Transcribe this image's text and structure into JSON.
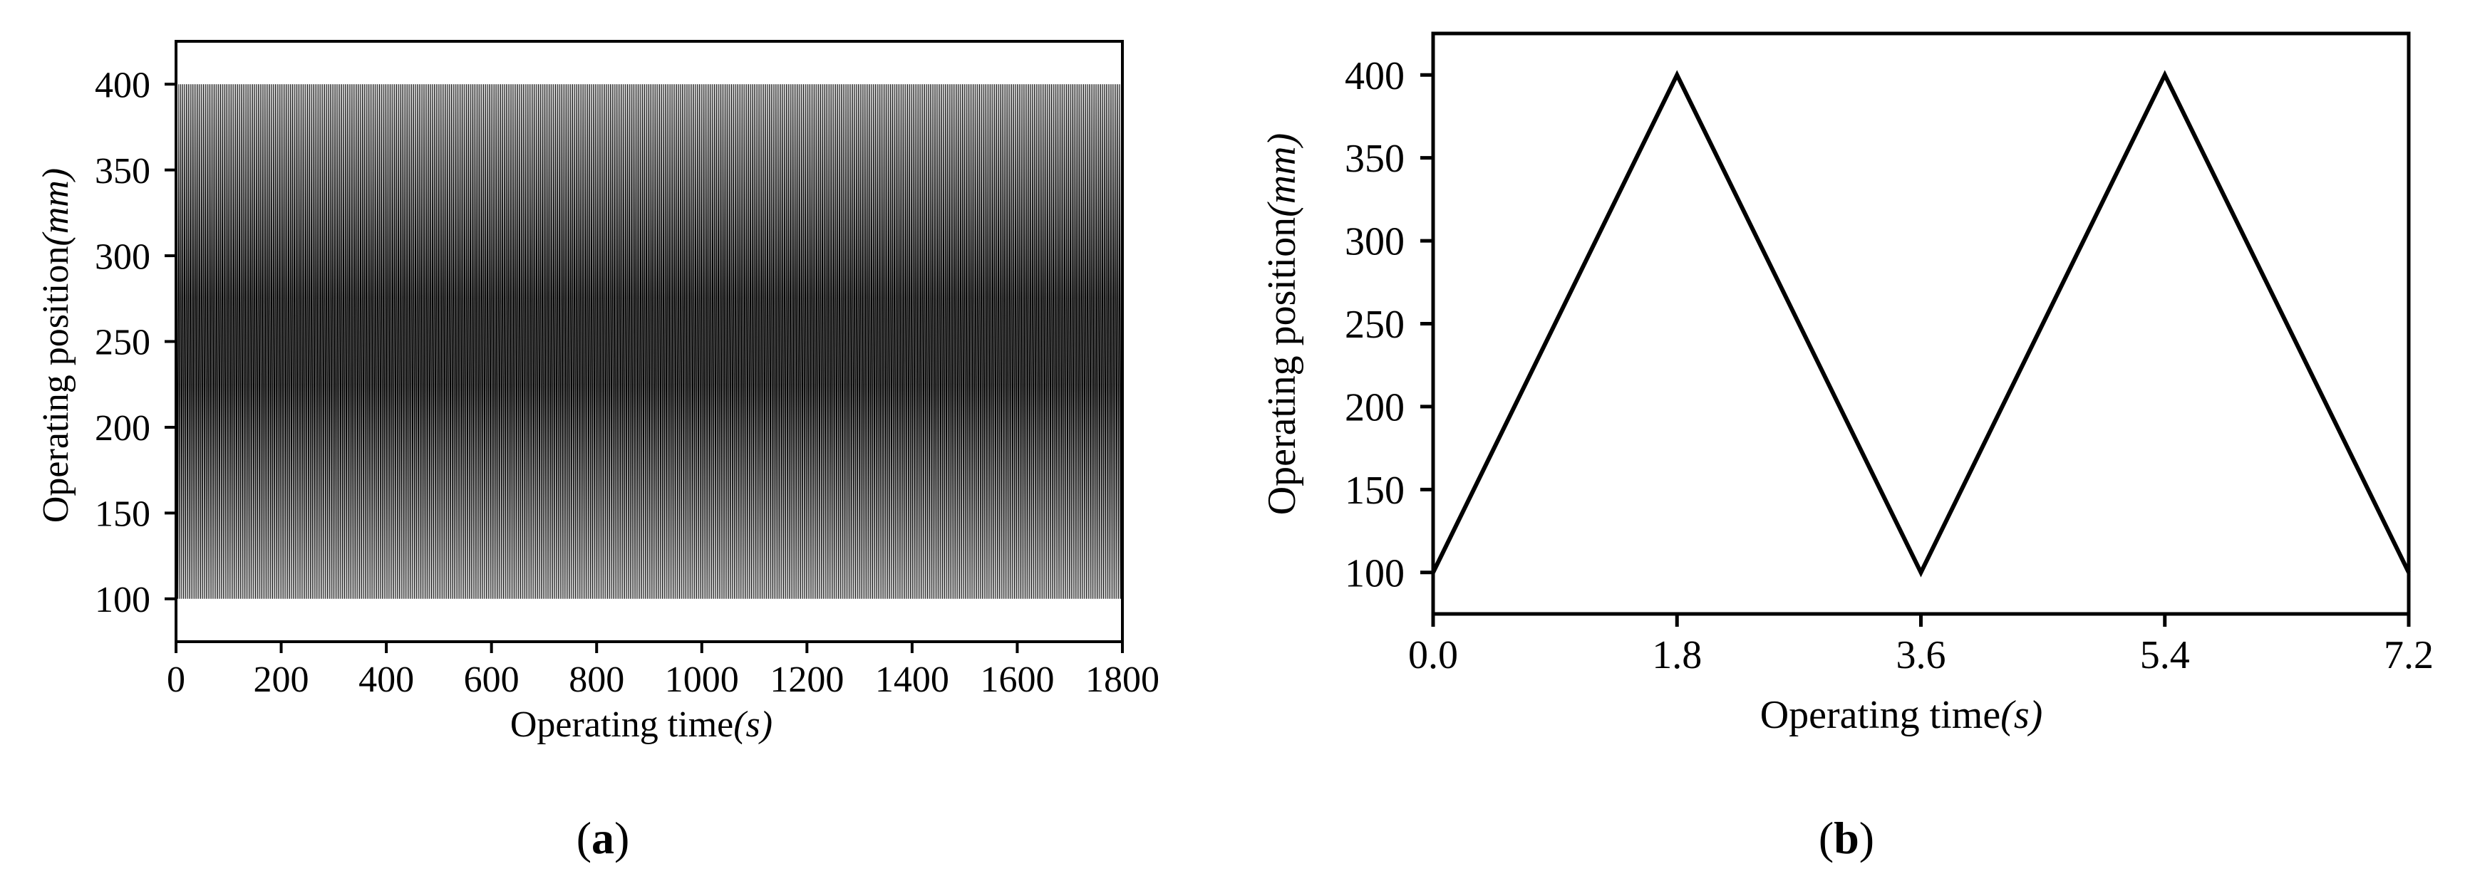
{
  "panels": [
    {
      "label_open": "(",
      "label_letter": "a",
      "label_close": ")"
    },
    {
      "label_open": "(",
      "label_letter": "b",
      "label_close": ")"
    }
  ],
  "chart_data": [
    {
      "type": "line",
      "xlabel_main": "Operating time",
      "xlabel_unit": "(s)",
      "ylabel_main": "Operating position",
      "ylabel_unit": "(mm)",
      "xlim": [
        0,
        1800
      ],
      "ylim": [
        75,
        425
      ],
      "xticks": [
        0,
        200,
        400,
        600,
        800,
        1000,
        1200,
        1400,
        1600,
        1800
      ],
      "yticks": [
        100,
        150,
        200,
        250,
        300,
        350,
        400
      ],
      "xtick_labels": [
        "0",
        "200",
        "400",
        "600",
        "800",
        "1000",
        "1200",
        "1400",
        "1600",
        "1800"
      ],
      "ytick_labels": [
        "100",
        "150",
        "200",
        "250",
        "300",
        "350",
        "400"
      ],
      "grid": false,
      "pattern": "triangular",
      "period": 3.6,
      "min": 100,
      "max": 400,
      "color": "#000000"
    },
    {
      "type": "line",
      "xlabel_main": "Operating time",
      "xlabel_unit": "(s)",
      "ylabel_main": "Operating position",
      "ylabel_unit": "(mm)",
      "xlim": [
        0,
        7.2
      ],
      "ylim": [
        75,
        425
      ],
      "xticks": [
        0,
        1.8,
        3.6,
        5.4,
        7.2
      ],
      "yticks": [
        100,
        150,
        200,
        250,
        300,
        350,
        400
      ],
      "xtick_labels": [
        "0.0",
        "1.8",
        "3.6",
        "5.4",
        "7.2"
      ],
      "ytick_labels": [
        "100",
        "150",
        "200",
        "250",
        "300",
        "350",
        "400"
      ],
      "grid": false,
      "x": [
        0,
        1.8,
        3.6,
        5.4,
        7.2
      ],
      "y": [
        100,
        400,
        100,
        400,
        100
      ],
      "color": "#000000"
    }
  ]
}
